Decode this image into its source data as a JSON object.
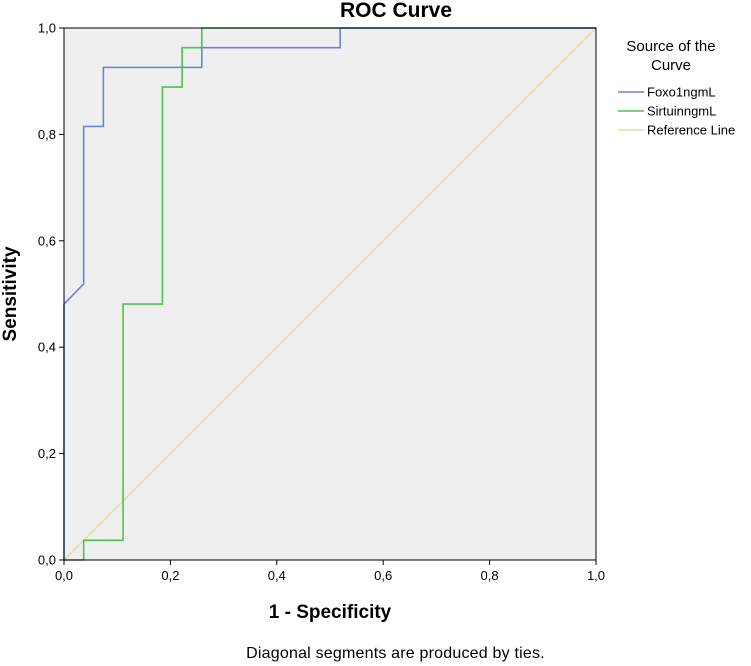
{
  "chart_data": {
    "type": "line",
    "title": "ROC Curve",
    "xlabel": "1 - Specificity",
    "ylabel": "Sensitivity",
    "xlim": [
      0,
      1
    ],
    "ylim": [
      0,
      1
    ],
    "x_ticks": [
      "0,0",
      "0,2",
      "0,4",
      "0,6",
      "0,8",
      "1,0"
    ],
    "y_ticks": [
      "0,0",
      "0,2",
      "0,4",
      "0,6",
      "0,8",
      "1,0"
    ],
    "grid": false,
    "plot_background": "#efefef",
    "legend": {
      "title_lines": [
        "Source of the",
        "Curve"
      ],
      "placement": "right"
    },
    "series": [
      {
        "name": "Foxo1ngmL",
        "color": "#6b83d4",
        "x": [
          0,
          0,
          0.037,
          0.037,
          0.074,
          0.074,
          0.259,
          0.259,
          0.519,
          0.519,
          1.0
        ],
        "y": [
          0,
          0.481,
          0.519,
          0.815,
          0.815,
          0.926,
          0.926,
          0.963,
          0.963,
          1.0,
          1.0
        ]
      },
      {
        "name": "SirtuinngmL",
        "color": "#4fc24f",
        "x": [
          0,
          0.037,
          0.037,
          0.111,
          0.111,
          0.185,
          0.185,
          0.222,
          0.222,
          0.259,
          0.259,
          1.0
        ],
        "y": [
          0,
          0,
          0.037,
          0.037,
          0.481,
          0.481,
          0.889,
          0.889,
          0.963,
          0.963,
          1.0,
          1.0
        ]
      },
      {
        "name": "Reference Line",
        "color": "#e2dcb0",
        "x": [
          0,
          1
        ],
        "y": [
          0,
          1
        ]
      }
    ]
  },
  "footnote": "Diagonal segments are produced by ties."
}
